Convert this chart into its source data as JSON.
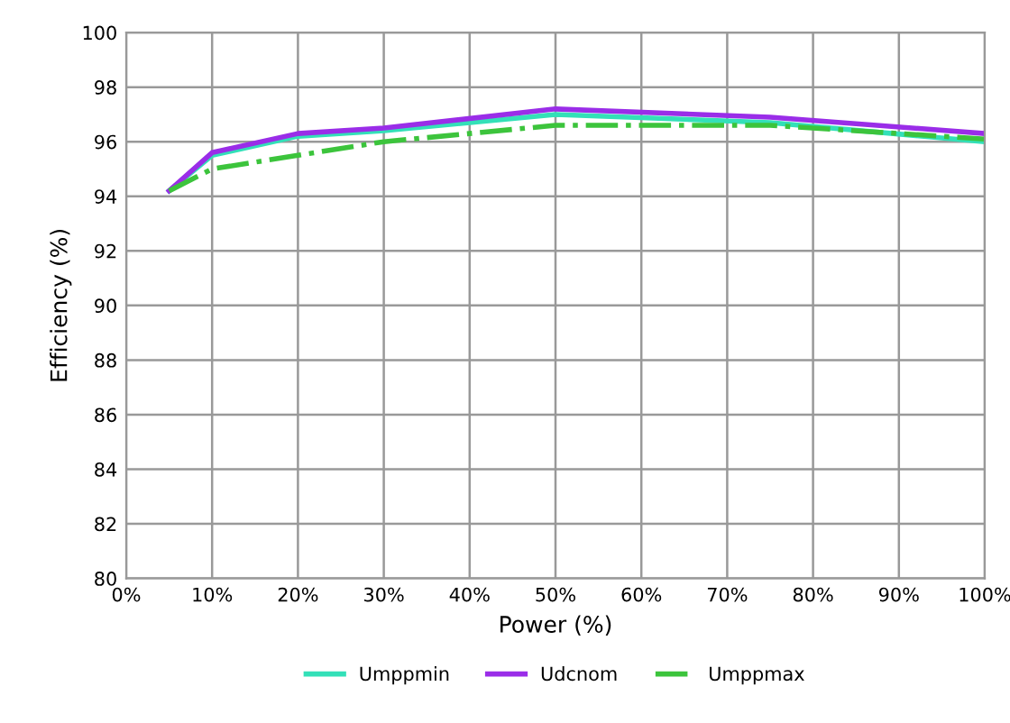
{
  "chart_data": {
    "type": "line",
    "xlabel": "Power (%)",
    "ylabel": "Efficiency (%)",
    "x": [
      5,
      10,
      20,
      30,
      50,
      75,
      100
    ],
    "series": [
      {
        "name": "Umppmin",
        "color": "#33e0b8",
        "values": [
          94.2,
          95.5,
          96.2,
          96.4,
          97.0,
          96.7,
          96.0
        ],
        "line_style": "solid"
      },
      {
        "name": "Udcnom",
        "color": "#9a2de8",
        "values": [
          94.2,
          95.6,
          96.3,
          96.5,
          97.2,
          96.9,
          96.3
        ],
        "line_style": "solid"
      },
      {
        "name": "Umppmax",
        "color": "#3cc43c",
        "values": [
          94.2,
          95.0,
          95.5,
          96.0,
          96.6,
          96.6,
          96.1
        ],
        "line_style": "dashdot"
      }
    ],
    "xlim": [
      0,
      100
    ],
    "ylim": [
      80,
      100
    ],
    "xticks": [
      {
        "value": 0,
        "label": "0%"
      },
      {
        "value": 10,
        "label": "10%"
      },
      {
        "value": 20,
        "label": "20%"
      },
      {
        "value": 30,
        "label": "30%"
      },
      {
        "value": 40,
        "label": "40%"
      },
      {
        "value": 50,
        "label": "50%"
      },
      {
        "value": 60,
        "label": "60%"
      },
      {
        "value": 70,
        "label": "70%"
      },
      {
        "value": 80,
        "label": "80%"
      },
      {
        "value": 90,
        "label": "90%"
      },
      {
        "value": 100,
        "label": "100%"
      }
    ],
    "yticks": [
      80,
      82,
      84,
      86,
      88,
      90,
      92,
      94,
      96,
      98,
      100
    ],
    "grid": true,
    "legend": "bottom",
    "marker": "none"
  }
}
